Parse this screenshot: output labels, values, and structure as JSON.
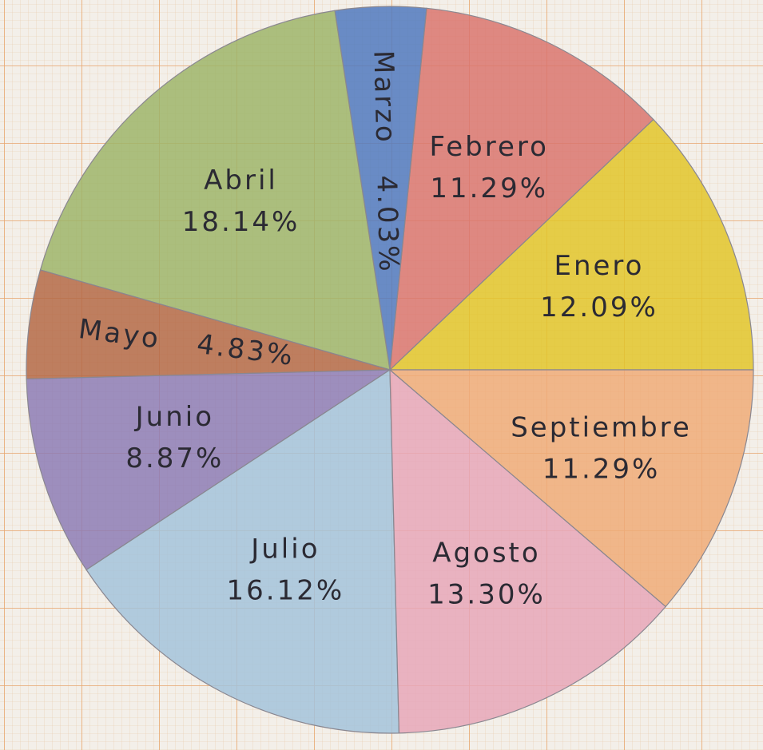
{
  "chart_data": {
    "type": "pie",
    "categories": [
      "Enero",
      "Febrero",
      "Marzo",
      "Abril",
      "Mayo",
      "Junio",
      "Julio",
      "Agosto",
      "Septiembre"
    ],
    "values": [
      12.09,
      11.29,
      4.03,
      18.14,
      4.83,
      8.87,
      16.12,
      13.3,
      11.29
    ],
    "value_labels": [
      "12.09%",
      "11.29%",
      "4.03%",
      "18.14%",
      "4.83%",
      "8.87%",
      "16.12%",
      "13.30%",
      "11.29%"
    ],
    "colors": [
      "#e2c62a",
      "#d9766e",
      "#5079be",
      "#9db56a",
      "#b46a47",
      "#8d7cb5",
      "#a3c3da",
      "#e6a7b8",
      "#eeab78"
    ]
  }
}
